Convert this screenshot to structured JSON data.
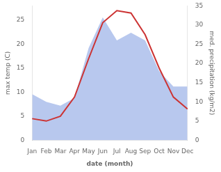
{
  "chart_data": {
    "type": "line",
    "categories": [
      "Jan",
      "Feb",
      "Mar",
      "Apr",
      "May",
      "Jun",
      "Jul",
      "Aug",
      "Sep",
      "Oct",
      "Nov",
      "Dec"
    ],
    "xlabel": "date (month)",
    "ylabel": "max temp (C)",
    "y2label": "med. precipitation (kg/m2)",
    "series": [
      {
        "type": "area",
        "axis": "y2",
        "color": "#b8c8ee",
        "values": [
          12,
          10,
          9,
          11,
          24,
          32,
          26,
          28,
          26,
          18,
          14,
          14
        ]
      },
      {
        "type": "line",
        "axis": "y",
        "color": "#cc3333",
        "values": [
          4.5,
          4.0,
          5.0,
          9.0,
          17.0,
          24.5,
          27.0,
          26.5,
          22.0,
          15.0,
          9.0,
          6.5
        ]
      }
    ],
    "ylim": [
      0,
      28
    ],
    "yticks": [
      0,
      5,
      10,
      15,
      20,
      25
    ],
    "y2lim": [
      0,
      35
    ],
    "y2ticks": [
      0,
      5,
      10,
      15,
      20,
      25,
      30,
      35
    ],
    "grid": false
  }
}
